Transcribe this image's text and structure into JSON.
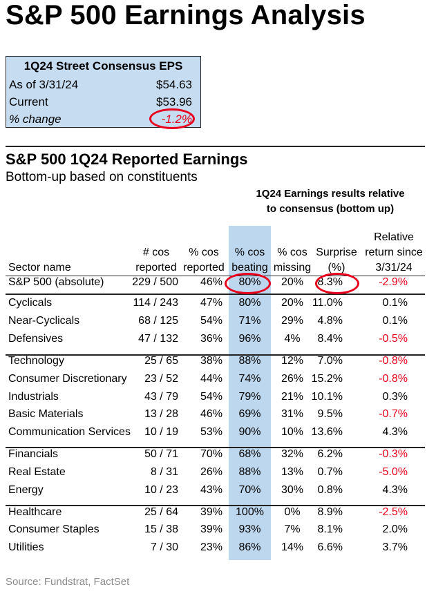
{
  "title": "S&P 500 Earnings Analysis",
  "consensus": {
    "header": "1Q24 Street Consensus EPS",
    "rows": [
      {
        "label": "As of 3/31/24",
        "value": "$54.63"
      },
      {
        "label": "Current",
        "value": "$53.96"
      },
      {
        "label": "% change",
        "value": "-1.2%"
      }
    ]
  },
  "section": {
    "title": "S&P 500 1Q24 Reported Earnings",
    "subtitle": "Bottom-up based on constituents",
    "relative_header_line1": "1Q24 Earnings results relative",
    "relative_header_line2": "to consensus (bottom up)"
  },
  "columns": {
    "sector": "Sector name",
    "reported_1": "# cos",
    "reported_2": "reported",
    "pct_reported_1": "% cos",
    "pct_reported_2": "reported",
    "beating_1": "% cos",
    "beating_2": "beating",
    "missing_1": "% cos",
    "missing_2": "missing",
    "surprise_1": "Surprise",
    "surprise_2": "(%)",
    "return_1": "Relative",
    "return_2": "return since",
    "return_3": "3/31/24"
  },
  "highlight_color": "#bdd7ee",
  "negative_color": "#e8001c",
  "rows": [
    {
      "sector": "S&P 500 (absolute)",
      "reported": "229 / 500",
      "pct_reported": "46%",
      "beating": "80%",
      "missing": "20%",
      "surprise": "8.3%",
      "return": "-2.9%"
    },
    {
      "sector": "Cyclicals",
      "reported": "114 / 243",
      "pct_reported": "47%",
      "beating": "80%",
      "missing": "20%",
      "surprise": "11.0%",
      "return": "0.1%"
    },
    {
      "sector": "Near-Cyclicals",
      "reported": "68 / 125",
      "pct_reported": "54%",
      "beating": "71%",
      "missing": "29%",
      "surprise": "4.8%",
      "return": "0.1%"
    },
    {
      "sector": "Defensives",
      "reported": "47 / 132",
      "pct_reported": "36%",
      "beating": "96%",
      "missing": "4%",
      "surprise": "8.4%",
      "return": "-0.5%"
    },
    {
      "sector": "Technology",
      "reported": "25 / 65",
      "pct_reported": "38%",
      "beating": "88%",
      "missing": "12%",
      "surprise": "7.0%",
      "return": "-0.8%"
    },
    {
      "sector": "Consumer Discretionary",
      "reported": "23 / 52",
      "pct_reported": "44%",
      "beating": "74%",
      "missing": "26%",
      "surprise": "15.2%",
      "return": "-0.8%"
    },
    {
      "sector": "Industrials",
      "reported": "43 / 79",
      "pct_reported": "54%",
      "beating": "79%",
      "missing": "21%",
      "surprise": "10.1%",
      "return": "0.3%"
    },
    {
      "sector": "Basic Materials",
      "reported": "13 / 28",
      "pct_reported": "46%",
      "beating": "69%",
      "missing": "31%",
      "surprise": "9.5%",
      "return": "-0.7%"
    },
    {
      "sector": "Communication Services",
      "reported": "10 / 19",
      "pct_reported": "53%",
      "beating": "90%",
      "missing": "10%",
      "surprise": "13.6%",
      "return": "4.3%"
    },
    {
      "sector": "Financials",
      "reported": "50 / 71",
      "pct_reported": "70%",
      "beating": "68%",
      "missing": "32%",
      "surprise": "6.2%",
      "return": "-0.3%"
    },
    {
      "sector": "Real Estate",
      "reported": "8 / 31",
      "pct_reported": "26%",
      "beating": "88%",
      "missing": "13%",
      "surprise": "0.7%",
      "return": "-5.0%"
    },
    {
      "sector": "Energy",
      "reported": "10 / 23",
      "pct_reported": "43%",
      "beating": "70%",
      "missing": "30%",
      "surprise": "0.8%",
      "return": "4.3%"
    },
    {
      "sector": "Healthcare",
      "reported": "25 / 64",
      "pct_reported": "39%",
      "beating": "100%",
      "missing": "0%",
      "surprise": "8.9%",
      "return": "-2.5%"
    },
    {
      "sector": "Consumer Staples",
      "reported": "15 / 38",
      "pct_reported": "39%",
      "beating": "93%",
      "missing": "7%",
      "surprise": "8.1%",
      "return": "2.0%"
    },
    {
      "sector": "Utilities",
      "reported": "7 / 30",
      "pct_reported": "23%",
      "beating": "86%",
      "missing": "14%",
      "surprise": "6.6%",
      "return": "3.7%"
    }
  ],
  "source": "Source: Fundstrat, FactSet"
}
